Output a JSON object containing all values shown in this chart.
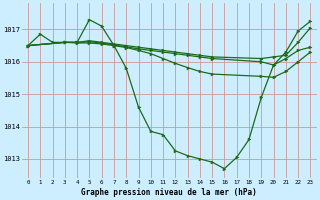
{
  "title": "Graphe pression niveau de la mer (hPa)",
  "bg_color": "#cceeff",
  "grid_color": "#cc9999",
  "line_color": "#1a6b1a",
  "xlim": [
    -0.5,
    23.5
  ],
  "ylim": [
    1012.4,
    1017.8
  ],
  "yticks": [
    1013,
    1014,
    1015,
    1016,
    1017
  ],
  "xticks": [
    0,
    1,
    2,
    3,
    4,
    5,
    6,
    7,
    8,
    9,
    10,
    11,
    12,
    13,
    14,
    15,
    16,
    17,
    18,
    19,
    20,
    21,
    22,
    23
  ],
  "series": [
    {
      "x": [
        0,
        1,
        2,
        3,
        4,
        5,
        6,
        7,
        8,
        9,
        10,
        11,
        12,
        13,
        14,
        15,
        16,
        17,
        18,
        19,
        20,
        21,
        22,
        23
      ],
      "y": [
        1016.5,
        1016.85,
        1016.6,
        1016.6,
        1016.6,
        1017.3,
        1017.1,
        1016.5,
        1015.8,
        1014.6,
        1013.85,
        1013.75,
        1013.25,
        1013.1,
        1013.0,
        1012.9,
        1012.7,
        1013.05,
        1013.6,
        1014.9,
        1015.9,
        1016.3,
        1016.95,
        1017.25
      ]
    },
    {
      "x": [
        0,
        3,
        4,
        5,
        6,
        7,
        8,
        9,
        10,
        11,
        12,
        13,
        14,
        15,
        19,
        20,
        21,
        22,
        23
      ],
      "y": [
        1016.5,
        1016.6,
        1016.6,
        1016.65,
        1016.6,
        1016.55,
        1016.5,
        1016.45,
        1016.4,
        1016.35,
        1016.3,
        1016.25,
        1016.2,
        1016.15,
        1016.1,
        1016.15,
        1016.2,
        1016.6,
        1017.05
      ]
    },
    {
      "x": [
        0,
        3,
        4,
        5,
        6,
        7,
        8,
        9,
        10,
        11,
        12,
        13,
        14,
        15,
        19,
        20,
        21,
        22,
        23
      ],
      "y": [
        1016.5,
        1016.6,
        1016.6,
        1016.62,
        1016.58,
        1016.52,
        1016.46,
        1016.4,
        1016.35,
        1016.3,
        1016.25,
        1016.2,
        1016.15,
        1016.1,
        1016.0,
        1015.9,
        1016.1,
        1016.35,
        1016.45
      ]
    },
    {
      "x": [
        0,
        3,
        4,
        5,
        6,
        7,
        8,
        9,
        10,
        11,
        12,
        13,
        14,
        15,
        19,
        20,
        21,
        22,
        23
      ],
      "y": [
        1016.5,
        1016.6,
        1016.58,
        1016.58,
        1016.55,
        1016.5,
        1016.44,
        1016.35,
        1016.25,
        1016.1,
        1015.95,
        1015.82,
        1015.7,
        1015.62,
        1015.55,
        1015.52,
        1015.7,
        1016.0,
        1016.3
      ]
    }
  ]
}
